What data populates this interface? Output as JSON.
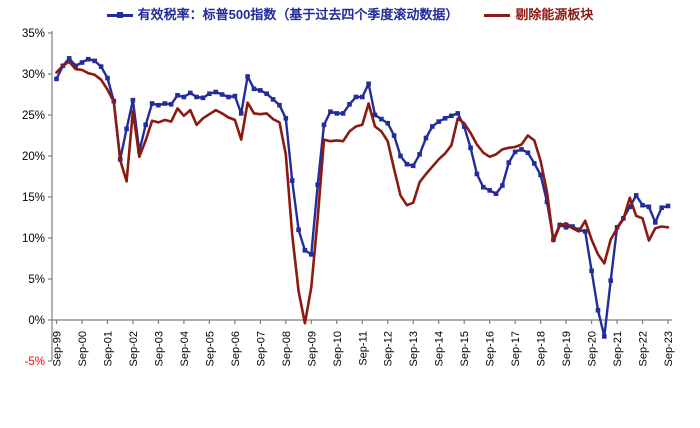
{
  "page": {
    "background": "#FFFFFF"
  },
  "colors": {
    "sp500": "#222C9B",
    "ex_energy": "#8C1A12",
    "axis": "#7F7F7F",
    "tick_label": "#000000",
    "negative_tick_label": "#FF0000"
  },
  "legend": {
    "items": [
      {
        "label": "有效税率：标普500指数（基于过去四个季度滚动数据）",
        "color": "#222C9B",
        "marker": "line-with-square"
      },
      {
        "label": "剔除能源板块",
        "color": "#8C1A12",
        "marker": "line"
      }
    ]
  },
  "axes": {
    "y_tick_labels": [
      "35%",
      "30%",
      "25%",
      "20%",
      "15%",
      "10%",
      "5%",
      "0%",
      "-5%"
    ],
    "y_tick_values": [
      35,
      30,
      25,
      20,
      15,
      10,
      5,
      0,
      -5
    ],
    "x_tick_labels": [
      "Sep-99",
      "Sep-00",
      "Sep-01",
      "Sep-02",
      "Sep-03",
      "Sep-04",
      "Sep-05",
      "Sep-06",
      "Sep-07",
      "Sep-08",
      "Sep-09",
      "Sep-10",
      "Sep-11",
      "Sep-12",
      "Sep-13",
      "Sep-14",
      "Sep-15",
      "Sep-16",
      "Sep-17",
      "Sep-18",
      "Sep-19",
      "Sep-20",
      "Sep-21",
      "Sep-22",
      "Sep-23"
    ]
  },
  "chart_data": {
    "type": "line",
    "title": "",
    "xlabel": "",
    "ylabel": "",
    "y_unit": "%",
    "ylim": [
      -5,
      35
    ],
    "grid": "baseline-at-zero-only",
    "legend_position": "top",
    "x_interval": "quarterly",
    "categories": [
      "Sep-99",
      "Dec-99",
      "Mar-00",
      "Jun-00",
      "Sep-00",
      "Dec-00",
      "Mar-01",
      "Jun-01",
      "Sep-01",
      "Dec-01",
      "Mar-02",
      "Jun-02",
      "Sep-02",
      "Dec-02",
      "Mar-03",
      "Jun-03",
      "Sep-03",
      "Dec-03",
      "Mar-04",
      "Jun-04",
      "Sep-04",
      "Dec-04",
      "Mar-05",
      "Jun-05",
      "Sep-05",
      "Dec-05",
      "Mar-06",
      "Jun-06",
      "Sep-06",
      "Dec-06",
      "Mar-07",
      "Jun-07",
      "Sep-07",
      "Dec-07",
      "Mar-08",
      "Jun-08",
      "Sep-08",
      "Dec-08",
      "Mar-09",
      "Jun-09",
      "Sep-09",
      "Dec-09",
      "Mar-10",
      "Jun-10",
      "Sep-10",
      "Dec-10",
      "Mar-11",
      "Jun-11",
      "Sep-11",
      "Dec-11",
      "Mar-12",
      "Jun-12",
      "Sep-12",
      "Dec-12",
      "Mar-13",
      "Jun-13",
      "Sep-13",
      "Dec-13",
      "Mar-14",
      "Jun-14",
      "Sep-14",
      "Dec-14",
      "Mar-15",
      "Jun-15",
      "Sep-15",
      "Dec-15",
      "Mar-16",
      "Jun-16",
      "Sep-16",
      "Dec-16",
      "Mar-17",
      "Jun-17",
      "Sep-17",
      "Dec-17",
      "Mar-18",
      "Jun-18",
      "Sep-18",
      "Dec-18",
      "Mar-19",
      "Jun-19",
      "Sep-19",
      "Dec-19",
      "Mar-20",
      "Jun-20",
      "Sep-20",
      "Dec-20",
      "Mar-21",
      "Jun-21",
      "Sep-21",
      "Dec-21",
      "Mar-22",
      "Jun-22",
      "Sep-22",
      "Dec-22",
      "Mar-23",
      "Jun-23",
      "Sep-23"
    ],
    "series": [
      {
        "name": "有效税率：标普500指数（基于过去四个季度滚动数据）",
        "color": "#222C9B",
        "marker": "square",
        "values": [
          29.4,
          31.0,
          31.9,
          31.0,
          31.4,
          31.8,
          31.6,
          30.9,
          29.5,
          26.7,
          19.6,
          23.3,
          26.8,
          20.6,
          23.8,
          26.4,
          26.2,
          26.4,
          26.3,
          27.4,
          27.2,
          27.7,
          27.2,
          27.1,
          27.6,
          27.8,
          27.5,
          27.2,
          27.3,
          25.2,
          29.7,
          28.2,
          28.0,
          27.6,
          26.9,
          26.2,
          24.6,
          17.0,
          11.0,
          8.5,
          8.0,
          16.5,
          23.8,
          25.4,
          25.2,
          25.2,
          26.3,
          27.2,
          27.2,
          28.8,
          25.0,
          24.5,
          24.0,
          22.5,
          20.0,
          19.0,
          18.8,
          20.2,
          22.2,
          23.6,
          24.2,
          24.6,
          24.9,
          25.2,
          23.6,
          21.0,
          17.8,
          16.2,
          15.8,
          15.4,
          16.4,
          19.2,
          20.5,
          20.8,
          20.4,
          19.1,
          17.7,
          14.4,
          9.8,
          11.6,
          11.3,
          11.4,
          11.0,
          10.8,
          6.0,
          1.2,
          -2.0,
          4.8,
          11.3,
          12.4,
          13.8,
          15.2,
          14.0,
          13.8,
          11.9,
          13.7,
          13.9
        ]
      },
      {
        "name": "剔除能源板块",
        "color": "#8C1A12",
        "marker": "none",
        "values": [
          30.2,
          31.0,
          31.5,
          30.6,
          30.5,
          30.1,
          29.9,
          29.3,
          28.1,
          26.6,
          19.5,
          16.9,
          25.5,
          19.9,
          21.9,
          24.3,
          24.1,
          24.4,
          24.2,
          25.8,
          24.9,
          25.6,
          23.8,
          24.6,
          25.1,
          25.6,
          25.2,
          24.7,
          24.4,
          22.0,
          26.5,
          25.2,
          25.1,
          25.2,
          24.5,
          24.1,
          20.2,
          10.4,
          3.5,
          -0.4,
          4.0,
          12.4,
          22.0,
          21.8,
          21.9,
          21.8,
          23.0,
          23.6,
          23.8,
          26.4,
          23.6,
          23.0,
          21.8,
          18.4,
          15.2,
          14.0,
          14.3,
          16.8,
          17.8,
          18.7,
          19.6,
          20.3,
          21.3,
          24.6,
          24.0,
          22.8,
          21.4,
          20.4,
          19.9,
          20.2,
          20.8,
          21.0,
          21.1,
          21.4,
          22.5,
          21.9,
          19.4,
          15.6,
          9.6,
          11.5,
          11.8,
          11.2,
          10.8,
          12.1,
          9.8,
          8.0,
          6.9,
          9.8,
          11.2,
          12.3,
          14.9,
          12.7,
          12.4,
          9.7,
          11.2,
          11.4,
          11.3
        ]
      }
    ]
  }
}
